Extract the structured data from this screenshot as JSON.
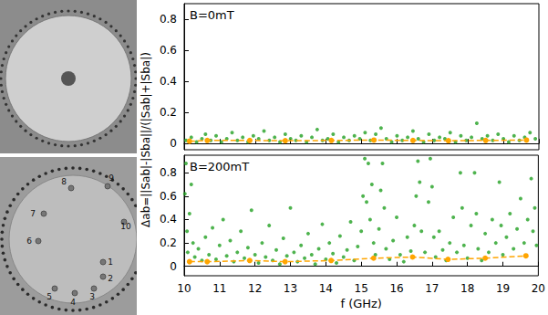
{
  "photos": {
    "antenna_labels": [
      "1",
      "2",
      "3",
      "4",
      "5",
      "6",
      "7",
      "8",
      "9",
      "10"
    ]
  },
  "chart_data": [
    {
      "type": "scatter",
      "annotation": "B=0mT",
      "ylabel": "Δab=||Sab|-|Sba||/(|Sab|+|Sba|)",
      "xlim": [
        10,
        20
      ],
      "xticks": [
        10,
        11,
        12,
        13,
        14,
        15,
        16,
        17,
        18,
        19,
        20
      ],
      "ylim": [
        -0.04,
        0.9
      ],
      "yticks": [
        0,
        0.2,
        0.4,
        0.6,
        0.8
      ],
      "tick_labels": "y",
      "series": [
        {
          "type": "scatter",
          "color": "#22a022",
          "marker": "circle",
          "x": [
            10.05,
            10.2,
            10.35,
            10.5,
            10.6,
            10.75,
            10.9,
            11.05,
            11.2,
            11.35,
            11.5,
            11.65,
            11.8,
            11.95,
            12.1,
            12.25,
            12.4,
            12.55,
            12.7,
            12.85,
            13.0,
            13.15,
            13.3,
            13.45,
            13.6,
            13.75,
            13.9,
            14.05,
            14.2,
            14.35,
            14.5,
            14.65,
            14.8,
            14.95,
            15.1,
            15.25,
            15.4,
            15.55,
            15.7,
            15.85,
            16.0,
            16.15,
            16.3,
            16.45,
            16.6,
            16.75,
            16.9,
            17.05,
            17.2,
            17.35,
            17.5,
            17.65,
            17.8,
            17.95,
            18.1,
            18.25,
            18.4,
            18.55,
            18.7,
            18.85,
            19.0,
            19.15,
            19.3,
            19.45,
            19.6,
            19.75,
            19.9
          ],
          "values": [
            0.02,
            0.04,
            0.01,
            0.03,
            0.06,
            0.02,
            0.05,
            0.01,
            0.03,
            0.07,
            0.02,
            0.04,
            0.01,
            0.05,
            0.03,
            0.08,
            0.02,
            0.04,
            0.01,
            0.06,
            0.03,
            0.02,
            0.05,
            0.01,
            0.04,
            0.09,
            0.02,
            0.03,
            0.06,
            0.01,
            0.04,
            0.02,
            0.05,
            0.03,
            0.07,
            0.02,
            0.06,
            0.1,
            0.03,
            0.01,
            0.05,
            0.02,
            0.04,
            0.08,
            0.03,
            0.01,
            0.06,
            0.02,
            0.04,
            0.03,
            0.07,
            0.01,
            0.05,
            0.02,
            0.04,
            0.13,
            0.03,
            0.05,
            0.02,
            0.06,
            0.03,
            0.01,
            0.05,
            0.02,
            0.04,
            0.07,
            0.03
          ]
        },
        {
          "type": "line",
          "color": "#ffa500",
          "marker": "circle",
          "line_style": "dashed",
          "x": [
            10.15,
            10.65,
            11.85,
            12.85,
            14.15,
            15.35,
            16.45,
            17.45,
            18.5,
            19.65
          ],
          "values": [
            0.015,
            0.02,
            0.02,
            0.018,
            0.02,
            0.022,
            0.02,
            0.018,
            0.02,
            0.022
          ]
        }
      ]
    },
    {
      "type": "scatter",
      "annotation": "B=200mT",
      "xlabel": "f (GHz)",
      "xlim": [
        10,
        20
      ],
      "xticks": [
        10,
        11,
        12,
        13,
        14,
        15,
        16,
        17,
        18,
        19,
        20
      ],
      "ylim": [
        -0.08,
        0.95
      ],
      "yticks": [
        0,
        0.2,
        0.4,
        0.6,
        0.8
      ],
      "series": [
        {
          "type": "scatter",
          "color": "#22a022",
          "marker": "circle",
          "x": [
            10.02,
            10.05,
            10.08,
            10.1,
            10.15,
            10.2,
            10.25,
            10.3,
            10.4,
            10.5,
            10.6,
            10.7,
            10.8,
            10.9,
            11.0,
            11.1,
            11.2,
            11.3,
            11.4,
            11.5,
            11.6,
            11.7,
            11.8,
            11.9,
            12.0,
            12.1,
            12.2,
            12.3,
            12.4,
            12.5,
            12.6,
            12.7,
            12.8,
            12.9,
            13.0,
            13.1,
            13.2,
            13.3,
            13.4,
            13.5,
            13.6,
            13.7,
            13.8,
            13.9,
            14.0,
            14.1,
            14.2,
            14.3,
            14.4,
            14.5,
            14.6,
            14.7,
            14.8,
            14.9,
            15.0,
            15.05,
            15.1,
            15.15,
            15.2,
            15.25,
            15.3,
            15.35,
            15.4,
            15.5,
            15.55,
            15.6,
            15.65,
            15.7,
            15.8,
            15.9,
            16.0,
            16.1,
            16.2,
            16.3,
            16.4,
            16.5,
            16.55,
            16.6,
            16.65,
            16.7,
            16.8,
            16.9,
            16.95,
            17.0,
            17.05,
            17.1,
            17.2,
            17.3,
            17.4,
            17.5,
            17.6,
            17.7,
            17.8,
            17.85,
            17.9,
            18.0,
            18.1,
            18.2,
            18.25,
            18.3,
            18.4,
            18.5,
            18.6,
            18.7,
            18.8,
            18.9,
            18.95,
            19.0,
            19.1,
            19.2,
            19.3,
            19.4,
            19.5,
            19.6,
            19.7,
            19.8,
            19.85,
            19.9,
            19.95
          ],
          "values": [
            0.62,
            0.88,
            0.3,
            0.12,
            0.45,
            0.7,
            0.2,
            0.08,
            0.15,
            0.05,
            0.25,
            0.1,
            0.33,
            0.06,
            0.18,
            0.4,
            0.09,
            0.22,
            0.04,
            0.12,
            0.3,
            0.07,
            0.16,
            0.48,
            0.1,
            0.03,
            0.2,
            0.08,
            0.35,
            0.05,
            0.14,
            0.02,
            0.24,
            0.09,
            0.5,
            0.12,
            0.04,
            0.18,
            0.07,
            0.28,
            0.1,
            0.02,
            0.15,
            0.36,
            0.06,
            0.2,
            0.11,
            0.03,
            0.26,
            0.08,
            0.14,
            0.38,
            0.05,
            0.17,
            0.3,
            0.6,
            0.92,
            0.55,
            0.88,
            0.4,
            0.7,
            0.2,
            0.1,
            0.32,
            0.65,
            0.88,
            0.5,
            0.15,
            0.06,
            0.22,
            0.42,
            0.1,
            0.04,
            0.25,
            0.13,
            0.35,
            0.6,
            0.9,
            0.72,
            0.3,
            0.12,
            0.55,
            0.92,
            0.68,
            0.25,
            0.08,
            0.3,
            0.14,
            0.05,
            0.2,
            0.42,
            0.12,
            0.8,
            0.5,
            0.18,
            0.07,
            0.35,
            0.8,
            0.45,
            0.15,
            0.05,
            0.28,
            0.12,
            0.4,
            0.2,
            0.72,
            0.35,
            0.1,
            0.25,
            0.45,
            0.15,
            0.32,
            0.58,
            0.2,
            0.4,
            0.75,
            0.3,
            0.5,
            0.18
          ]
        },
        {
          "type": "line",
          "color": "#ffa500",
          "marker": "circle",
          "line_style": "dashed",
          "x": [
            10.15,
            10.65,
            11.85,
            12.85,
            14.15,
            15.35,
            16.45,
            17.45,
            18.5,
            19.65
          ],
          "values": [
            0.04,
            0.04,
            0.05,
            0.04,
            0.05,
            0.07,
            0.08,
            0.06,
            0.07,
            0.09
          ]
        }
      ]
    }
  ]
}
